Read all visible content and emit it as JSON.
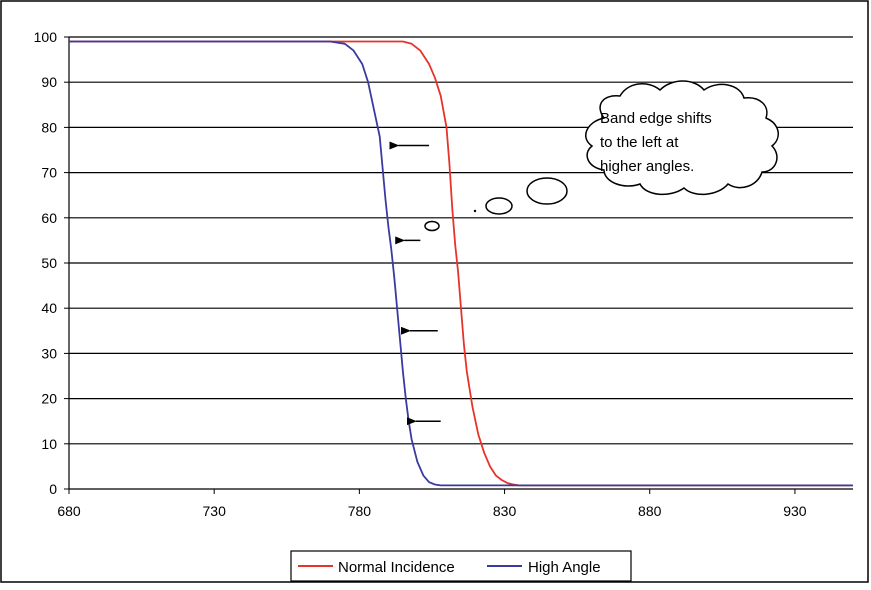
{
  "chart_data": {
    "type": "line",
    "title": "",
    "xlabel": "",
    "ylabel": "",
    "xlim": [
      680,
      950
    ],
    "ylim": [
      0,
      100
    ],
    "xticks": [
      680,
      730,
      780,
      830,
      880,
      930
    ],
    "yticks": [
      0,
      10,
      20,
      30,
      40,
      50,
      60,
      70,
      80,
      90,
      100
    ],
    "grid": "horizontal",
    "legend_position": "bottom",
    "series": [
      {
        "name": "Normal Incidence",
        "color": "#e8332a",
        "x": [
          680,
          770,
          785,
          795,
          798,
          801,
          804,
          806,
          808,
          810,
          811,
          812,
          813,
          814,
          815,
          816,
          817,
          819,
          821,
          823,
          825,
          827,
          829,
          831,
          833,
          835,
          950
        ],
        "y": [
          99,
          99,
          99,
          99,
          98.5,
          97,
          94,
          91,
          87,
          80,
          72,
          62,
          54,
          48,
          40,
          32,
          26,
          18,
          12,
          8,
          5,
          3,
          2,
          1.3,
          1,
          0.8,
          0.8
        ]
      },
      {
        "name": "High Angle",
        "color": "#3a3aa0",
        "x": [
          680,
          770,
          775,
          778,
          781,
          783,
          785,
          787,
          788,
          789,
          790,
          791,
          792,
          793,
          794,
          795,
          796,
          797,
          798,
          800,
          802,
          804,
          806,
          808,
          810,
          950
        ],
        "y": [
          99,
          99,
          98.5,
          97,
          94,
          90,
          84,
          78,
          71,
          64,
          58,
          53,
          47,
          40,
          33,
          26,
          20,
          15,
          11,
          6,
          3,
          1.5,
          1,
          0.8,
          0.8,
          0.8
        ]
      }
    ],
    "annotations": {
      "callout_text": [
        "Band edge shifts",
        "to the left at",
        "higher angles."
      ]
    },
    "arrows": [
      {
        "y": 76,
        "x_from": 804,
        "x_to": 790
      },
      {
        "y": 55,
        "x_from": 801,
        "x_to": 792
      },
      {
        "y": 35,
        "x_from": 807,
        "x_to": 794
      },
      {
        "y": 15,
        "x_from": 808,
        "x_to": 796
      }
    ]
  }
}
